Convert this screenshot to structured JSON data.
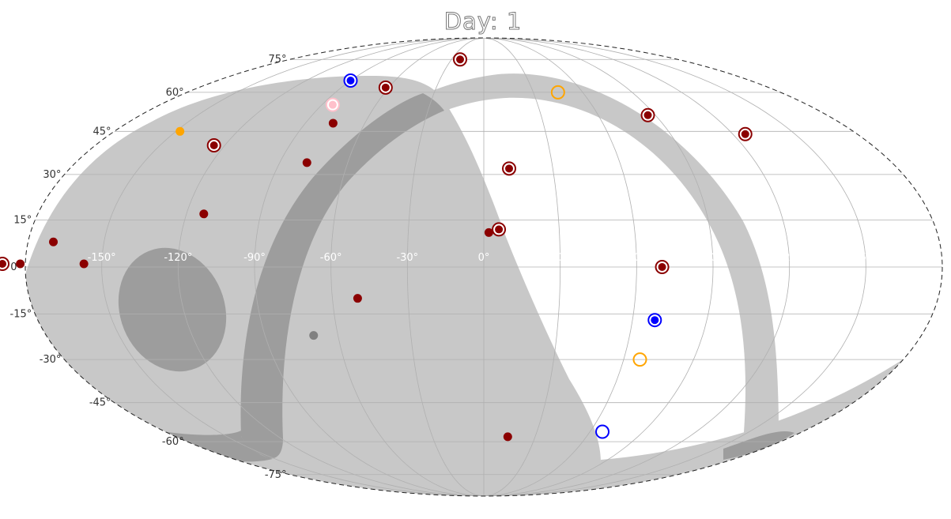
{
  "chart_data": {
    "type": "scatter",
    "projection": "mollweide",
    "title": "Day: 1",
    "xlabel": "",
    "ylabel": "",
    "xlim": [
      -180,
      180
    ],
    "ylim": [
      -90,
      90
    ],
    "grid": true,
    "x_ticks": [
      -150,
      -120,
      -90,
      -60,
      -30,
      0,
      30,
      60,
      90,
      120,
      150
    ],
    "x_tick_labels": [
      "-150°",
      "-120°",
      "-90°",
      "-60°",
      "-30°",
      "0°",
      "30°",
      "60°",
      "90°",
      "120°",
      "150°"
    ],
    "y_ticks": [
      75,
      60,
      45,
      30,
      15,
      0,
      -15,
      -30,
      -45,
      -60,
      -75
    ],
    "y_tick_labels": [
      "75°",
      "60°",
      "45°",
      "30°",
      "15°",
      "0°",
      "-15°",
      "-30°",
      "-45°",
      "-60°",
      "-75°"
    ],
    "colors": {
      "shade_light": "#c8c8c8",
      "shade_dark": "#9d9d9d",
      "darkred": "#8b0000",
      "blue": "#0000ff",
      "orange": "#ffa500",
      "pink": "#ffc0cb",
      "gray": "#808080",
      "grid": "#b0b0b0"
    },
    "regions": [
      {
        "name": "shaded-region-1",
        "shade": "light",
        "outline": [
          [
            -160,
            5
          ],
          [
            -110,
            0
          ],
          [
            -87,
            -20
          ],
          [
            -88,
            -55
          ],
          [
            -100,
            -63
          ],
          [
            -127,
            -64
          ],
          [
            -148,
            -55
          ],
          [
            -158,
            -40
          ],
          [
            -163,
            -20
          ]
        ]
      }
    ],
    "series": [
      {
        "marker": "filled",
        "color": "darkred",
        "points": [
          [
            -182,
            1
          ],
          [
            -170,
            8
          ],
          [
            -157,
            1
          ],
          [
            -113,
            17
          ],
          [
            -78,
            34
          ],
          [
            -76,
            48
          ],
          [
            -50,
            -10
          ],
          [
            2,
            11
          ],
          [
            14,
            -58
          ]
        ]
      },
      {
        "marker": "filled",
        "color": "orange",
        "points": [
          [
            -148,
            45
          ]
        ]
      },
      {
        "marker": "filled",
        "color": "gray",
        "points": [
          [
            -70,
            -22
          ]
        ]
      },
      {
        "marker": "ring-dot",
        "color": "darkred",
        "points": [
          [
            -189,
            1
          ],
          [
            -125,
            40
          ],
          [
            -62,
            62
          ],
          [
            -22,
            75
          ],
          [
            11,
            32
          ],
          [
            6,
            12
          ],
          [
            70,
            0
          ],
          [
            86,
            51
          ],
          [
            126,
            44
          ]
        ]
      },
      {
        "marker": "ring-dot",
        "color": "blue",
        "points": [
          [
            -90,
            65
          ],
          [
            69,
            -17
          ]
        ]
      },
      {
        "marker": "ring-dot",
        "color": "pink",
        "points": [
          [
            -84,
            55
          ]
        ]
      },
      {
        "marker": "ring",
        "color": "orange",
        "points": [
          [
            45,
            60
          ],
          [
            67,
            -30
          ]
        ]
      },
      {
        "marker": "ring",
        "color": "blue",
        "points": [
          [
            67,
            -56
          ]
        ]
      }
    ]
  }
}
